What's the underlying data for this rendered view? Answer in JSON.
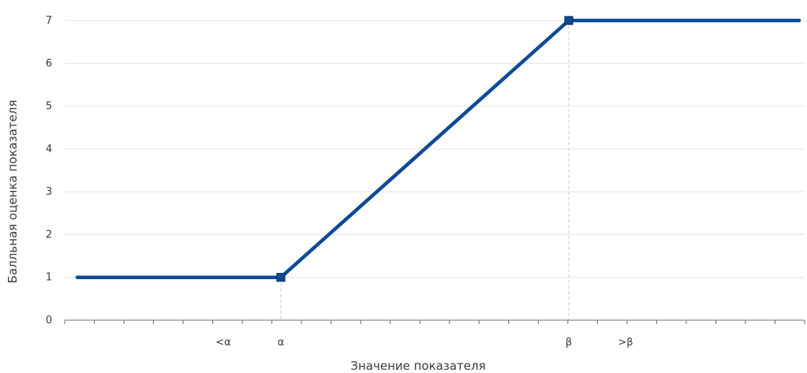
{
  "chart_data": {
    "type": "line",
    "title": "",
    "xlabel": "Значение показателя",
    "ylabel": "Балльная оценка показателя",
    "ylim": [
      0,
      7
    ],
    "y_ticks": [
      "0",
      "1",
      "2",
      "3",
      "4",
      "5",
      "6",
      "7"
    ],
    "x_tick_labels": [
      "<α",
      "α",
      "β",
      ">β"
    ],
    "series": [
      {
        "points": [
          {
            "x": "start",
            "y": 1
          },
          {
            "x": "α",
            "y": 1
          },
          {
            "x": "β",
            "y": 7
          },
          {
            "x": "end",
            "y": 7
          }
        ],
        "color": "#0d4a96"
      }
    ],
    "markers_at": [
      "α",
      "β"
    ],
    "grid": "horizontal",
    "legend": "none",
    "colors": {
      "line": "#0d4a96",
      "marker_stroke": "#0a2f66",
      "grid": "#e3e3e3",
      "axis": "#6d6d6d",
      "guide": "#c9c9c9"
    }
  }
}
